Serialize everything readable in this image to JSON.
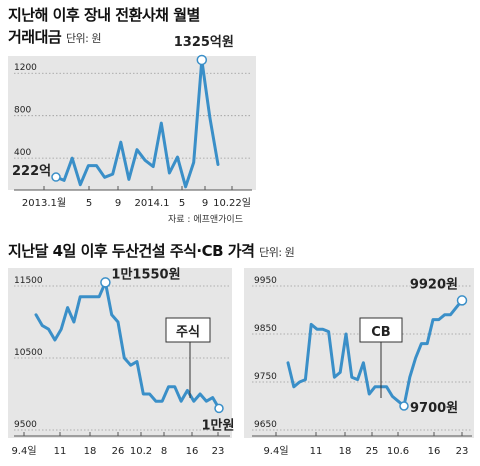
{
  "chart_data": [
    {
      "type": "line",
      "title_line1": "지난해 이후 장내 전환사채 월별",
      "title_line2": "거래대금",
      "unit_label": "단위: 원",
      "source": "자료 : 에프앤가이드",
      "x_tick_labels": [
        "2013.1월",
        "5",
        "9",
        "2014.1",
        "5",
        "9",
        "10.22일"
      ],
      "y_tick_labels": [
        "1200",
        "800",
        "400"
      ],
      "y_ticks": [
        1200,
        800,
        400
      ],
      "ylim": [
        100,
        1400
      ],
      "values": [
        222,
        190,
        400,
        150,
        330,
        330,
        220,
        250,
        550,
        200,
        480,
        380,
        320,
        730,
        260,
        410,
        130,
        360,
        1325,
        780,
        340
      ],
      "annotations": [
        {
          "text": "222억",
          "index": 0
        },
        {
          "text": "1325억원",
          "index": 18
        }
      ],
      "color": "#3a8fc8"
    },
    {
      "type": "line",
      "title": "지난달 4일 이후 두산건설 주식·CB 가격",
      "unit_label": "단위: 원",
      "panels": [
        {
          "label": "주식",
          "x_tick_labels": [
            "9.4일",
            "11",
            "18",
            "26",
            "10.2",
            "8",
            "16",
            "23"
          ],
          "y_tick_labels": [
            "11500",
            "10500",
            "9500"
          ],
          "y_ticks": [
            11500,
            10500,
            9500
          ],
          "ylim": [
            9500,
            11500
          ],
          "values": [
            11100,
            10950,
            10900,
            10750,
            10900,
            11200,
            11000,
            11350,
            11350,
            11350,
            11350,
            11550,
            11100,
            11000,
            10500,
            10400,
            10450,
            10000,
            10000,
            9900,
            9900,
            10100,
            10100,
            9900,
            10050,
            9900,
            10000,
            9900,
            9950,
            9800
          ],
          "annotations": [
            {
              "text": "1만1550원",
              "index": 11
            },
            {
              "text": "1만원",
              "index": 29
            }
          ]
        },
        {
          "label": "CB",
          "x_tick_labels": [
            "9.4일",
            "11",
            "18",
            "25",
            "10.6",
            "16",
            "23"
          ],
          "y_tick_labels": [
            "9950",
            "9850",
            "9750",
            "9650"
          ],
          "y_ticks": [
            9950,
            9850,
            9750,
            9650
          ],
          "ylim": [
            9650,
            9950
          ],
          "values": [
            9790,
            9740,
            9750,
            9755,
            9870,
            9860,
            9860,
            9855,
            9760,
            9770,
            9850,
            9760,
            9755,
            9790,
            9725,
            9740,
            9740,
            9740,
            9720,
            9710,
            9700,
            9760,
            9800,
            9830,
            9830,
            9880,
            9880,
            9890,
            9890,
            9905,
            9920
          ],
          "annotations": [
            {
              "text": "9920원",
              "index": 30
            },
            {
              "text": "9700원",
              "index": 20
            }
          ]
        }
      ],
      "color": "#3a8fc8"
    }
  ]
}
